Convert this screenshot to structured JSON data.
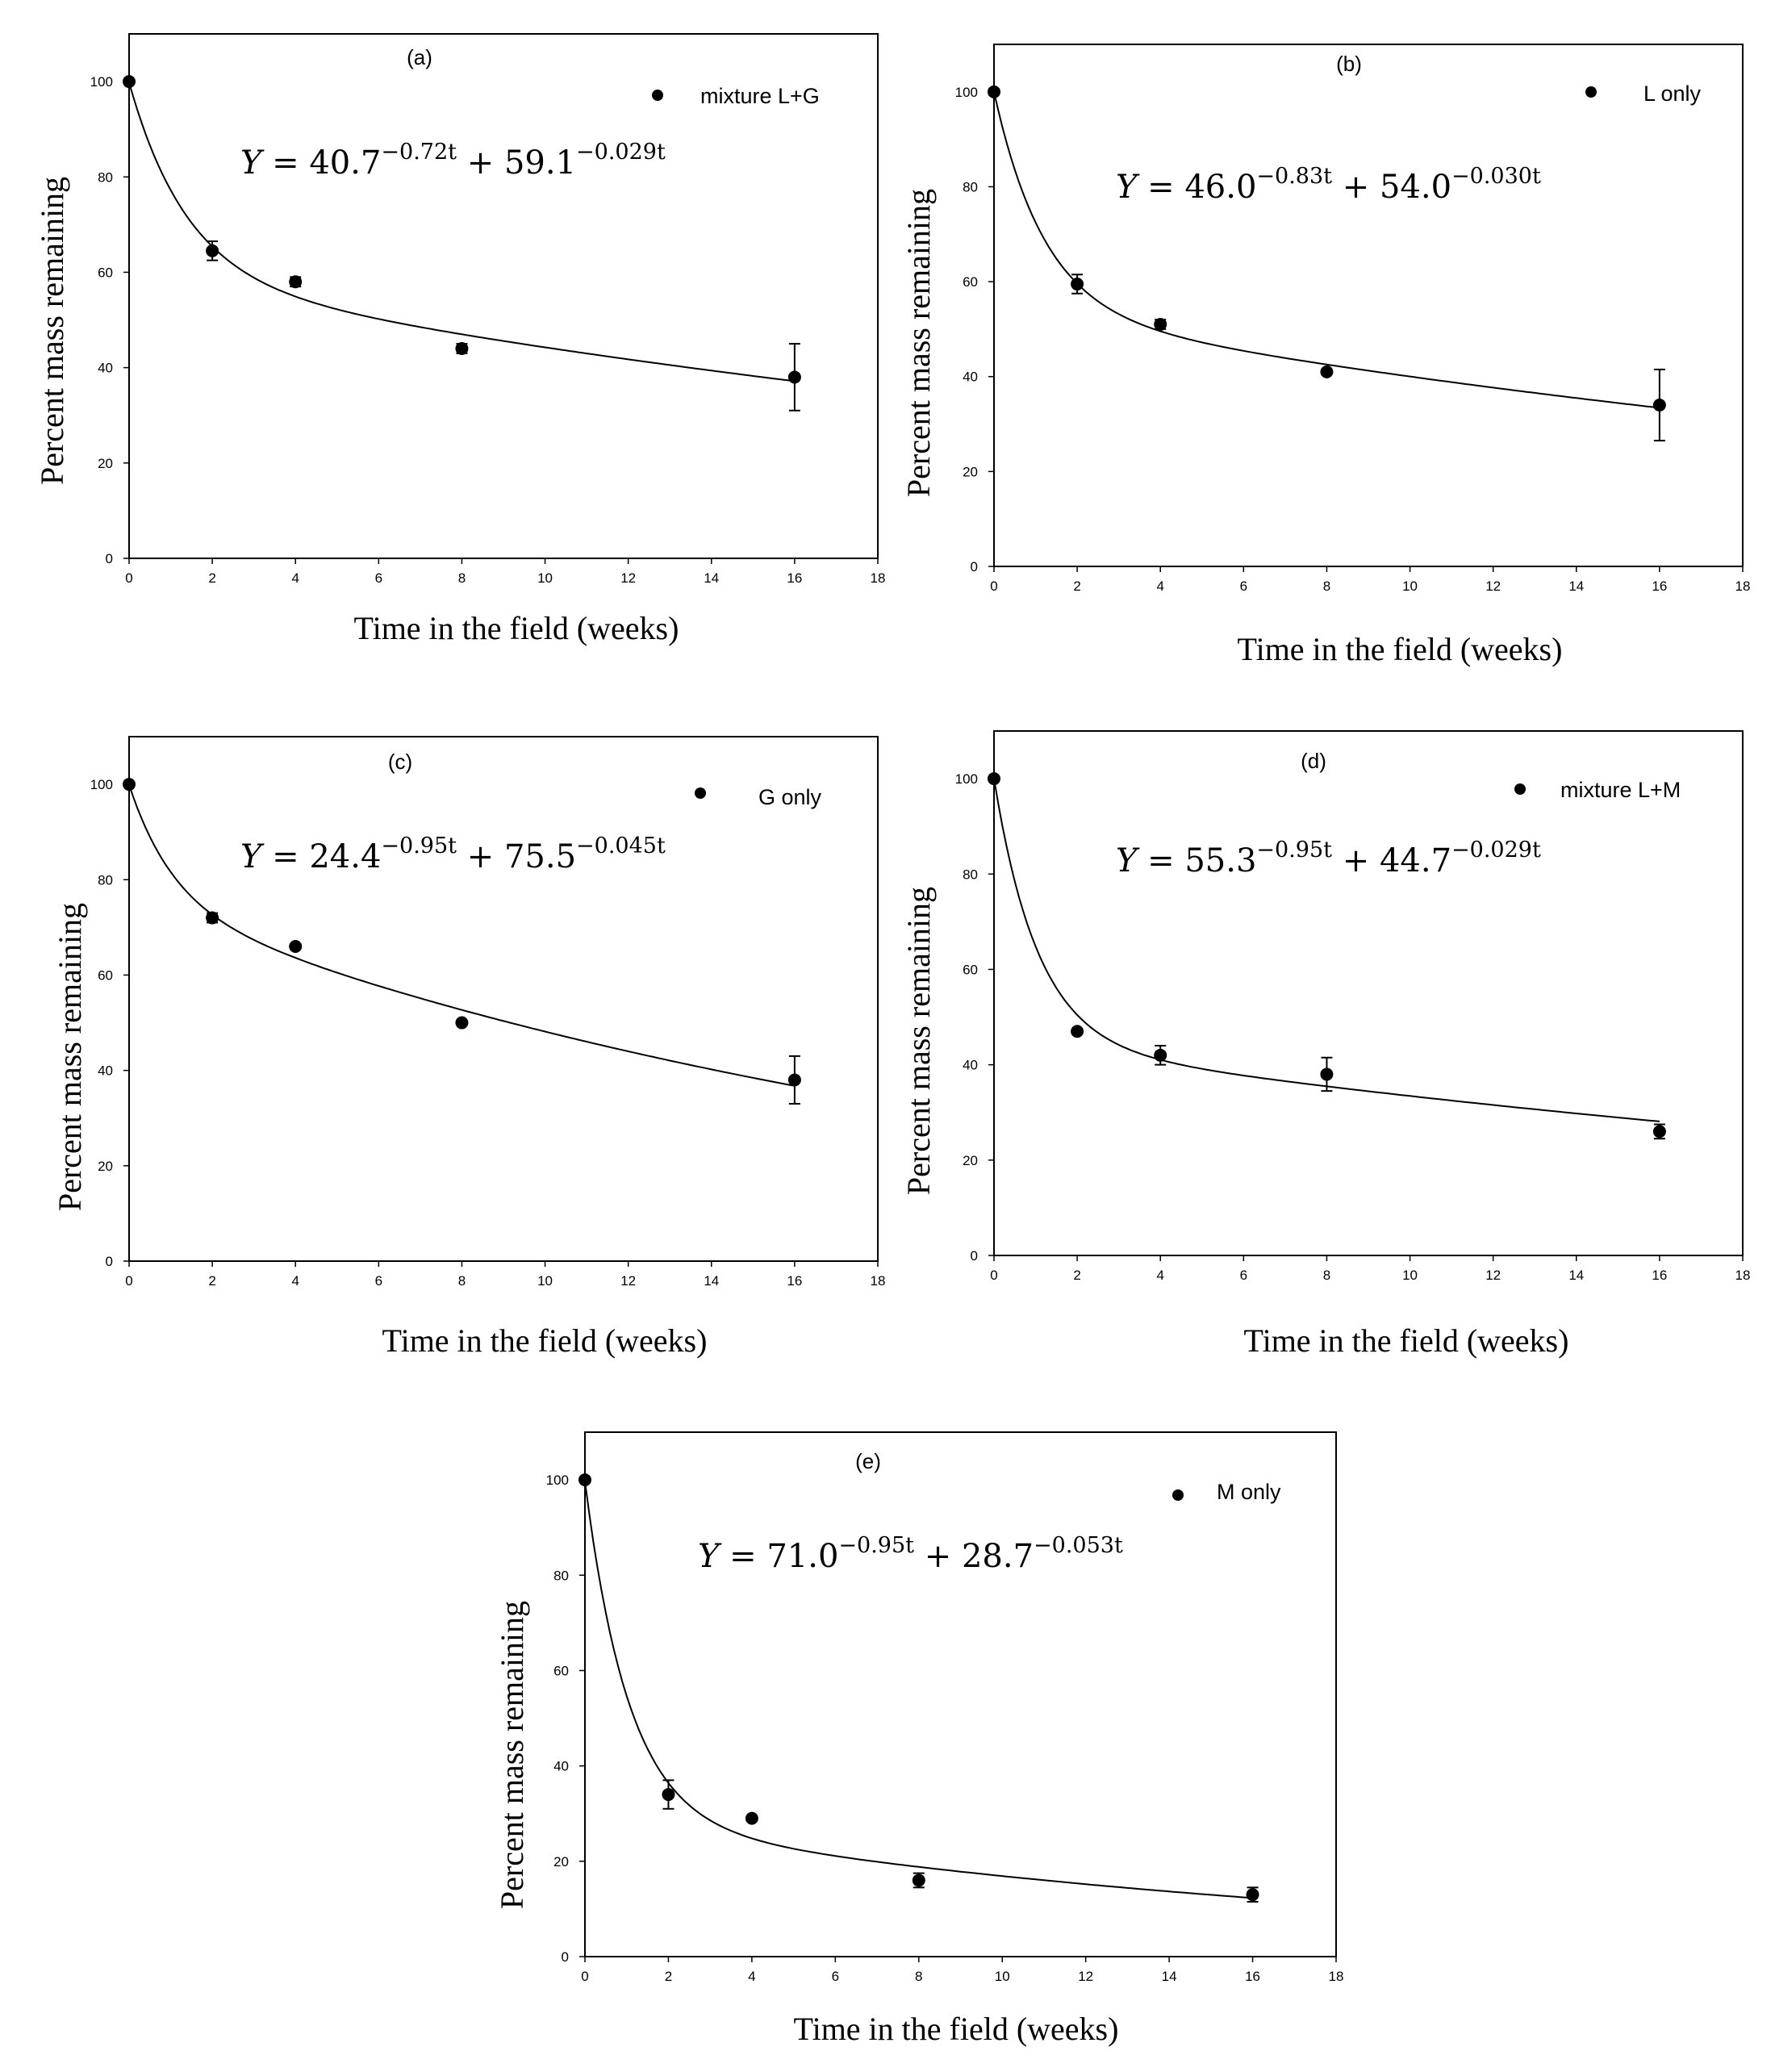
{
  "chart_data": [
    {
      "type": "scatter",
      "panel": "(a)",
      "legend": "mixture L+G",
      "equation": {
        "prefix": "Y = ",
        "a": "40.7",
        "exp1": "−0.72t",
        "join": " + ",
        "b": "59.1",
        "exp2": "−0.029t"
      },
      "fit": {
        "A": 40.7,
        "k1": 0.72,
        "B": 59.1,
        "k2": 0.029
      },
      "x": [
        0,
        2,
        4,
        8,
        16
      ],
      "y": [
        100,
        64.5,
        58,
        44,
        38
      ],
      "err": [
        0,
        2,
        1,
        1,
        7
      ],
      "xlabel": "Time in the field (weeks)",
      "ylabel": "Percent mass remaining",
      "xlim": [
        0,
        18
      ],
      "ylim": [
        0,
        110
      ],
      "xticks": [
        0,
        2,
        4,
        6,
        8,
        10,
        12,
        14,
        16,
        18
      ],
      "yticks": [
        0,
        20,
        40,
        60,
        80,
        100
      ]
    },
    {
      "type": "scatter",
      "panel": "(b)",
      "legend": "L only",
      "equation": {
        "prefix": "Y = ",
        "a": "46.0",
        "exp1": "−0.83t",
        "join": " + ",
        "b": "54.0",
        "exp2": "−0.030t"
      },
      "fit": {
        "A": 46.0,
        "k1": 0.83,
        "B": 54.0,
        "k2": 0.03
      },
      "x": [
        0,
        2,
        4,
        8,
        16
      ],
      "y": [
        100,
        59.5,
        51,
        41,
        34
      ],
      "err": [
        0,
        2,
        1,
        0.5,
        7.5
      ],
      "xlabel": "Time in the field (weeks)",
      "ylabel": "Percent mass remaining",
      "xlim": [
        0,
        18
      ],
      "ylim": [
        0,
        110
      ],
      "xticks": [
        0,
        2,
        4,
        6,
        8,
        10,
        12,
        14,
        16,
        18
      ],
      "yticks": [
        0,
        20,
        40,
        60,
        80,
        100
      ]
    },
    {
      "type": "scatter",
      "panel": "(c)",
      "legend": "G only",
      "equation": {
        "prefix": "Y = ",
        "a": "24.4",
        "exp1": "−0.95t",
        "join": " + ",
        "b": "75.5",
        "exp2": "−0.045t"
      },
      "fit": {
        "A": 24.4,
        "k1": 0.95,
        "B": 75.5,
        "k2": 0.045
      },
      "x": [
        0,
        2,
        4,
        8,
        16
      ],
      "y": [
        100,
        72,
        66,
        50,
        38
      ],
      "err": [
        0,
        1,
        0.5,
        0.5,
        5
      ],
      "xlabel": "Time in the field (weeks)",
      "ylabel": "Percent mass remaining",
      "xlim": [
        0,
        18
      ],
      "ylim": [
        0,
        110
      ],
      "xticks": [
        0,
        2,
        4,
        6,
        8,
        10,
        12,
        14,
        16,
        18
      ],
      "yticks": [
        0,
        20,
        40,
        60,
        80,
        100
      ]
    },
    {
      "type": "scatter",
      "panel": "(d)",
      "legend": "mixture L+M",
      "equation": {
        "prefix": "Y = ",
        "a": "55.3",
        "exp1": "−0.95t",
        "join": " + ",
        "b": "44.7",
        "exp2": "−0.029t"
      },
      "fit": {
        "A": 55.3,
        "k1": 0.95,
        "B": 44.7,
        "k2": 0.029
      },
      "x": [
        0,
        2,
        4,
        8,
        16
      ],
      "y": [
        100,
        47,
        42,
        38,
        26
      ],
      "err": [
        0,
        0.5,
        2,
        3.5,
        1.5
      ],
      "xlabel": "Time in the field (weeks)",
      "ylabel": "Percent mass remaining",
      "xlim": [
        0,
        18
      ],
      "ylim": [
        0,
        110
      ],
      "xticks": [
        0,
        2,
        4,
        6,
        8,
        10,
        12,
        14,
        16,
        18
      ],
      "yticks": [
        0,
        20,
        40,
        60,
        80,
        100
      ]
    },
    {
      "type": "scatter",
      "panel": "(e)",
      "legend": "M only",
      "equation": {
        "prefix": "Y = ",
        "a": "71.0",
        "exp1": "−0.95t",
        "join": " + ",
        "b": "28.7",
        "exp2": "−0.053t"
      },
      "fit": {
        "A": 71.0,
        "k1": 0.95,
        "B": 28.7,
        "k2": 0.053
      },
      "x": [
        0,
        2,
        4,
        8,
        16
      ],
      "y": [
        100,
        34,
        29,
        16,
        13
      ],
      "err": [
        0,
        3,
        0.5,
        1.5,
        1.5
      ],
      "xlabel": "Time in the field (weeks)",
      "ylabel": "Percent mass remaining",
      "xlim": [
        0,
        18
      ],
      "ylim": [
        0,
        110
      ],
      "xticks": [
        0,
        2,
        4,
        6,
        8,
        10,
        12,
        14,
        16,
        18
      ],
      "yticks": [
        0,
        20,
        40,
        60,
        80,
        100
      ]
    }
  ]
}
